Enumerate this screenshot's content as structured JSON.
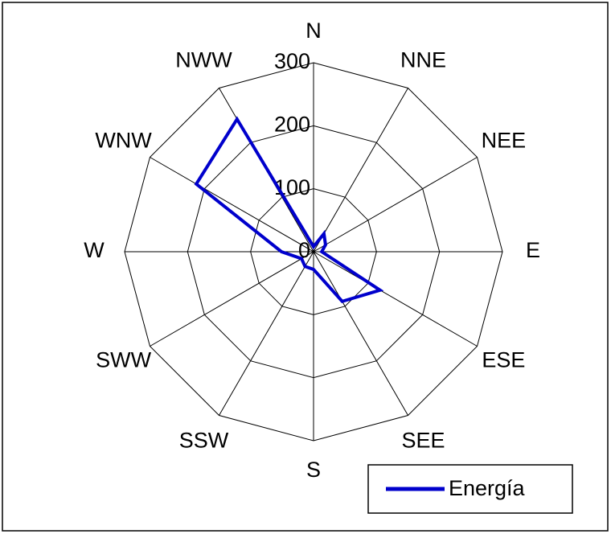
{
  "chart_data": {
    "type": "radar",
    "categories": [
      "N",
      "NNE",
      "NEE",
      "E",
      "ESE",
      "SEE",
      "S",
      "SSW",
      "SWW",
      "W",
      "WNW",
      "NWW"
    ],
    "series": [
      {
        "name": "Energía",
        "color": "#0000cc",
        "values": [
          8,
          33,
          22,
          13,
          122,
          91,
          28,
          27,
          22,
          51,
          215,
          243
        ]
      }
    ],
    "ylim": [
      0,
      300
    ],
    "yticks": [
      0,
      100,
      200,
      300
    ],
    "grid": true,
    "legend": "lower right"
  }
}
